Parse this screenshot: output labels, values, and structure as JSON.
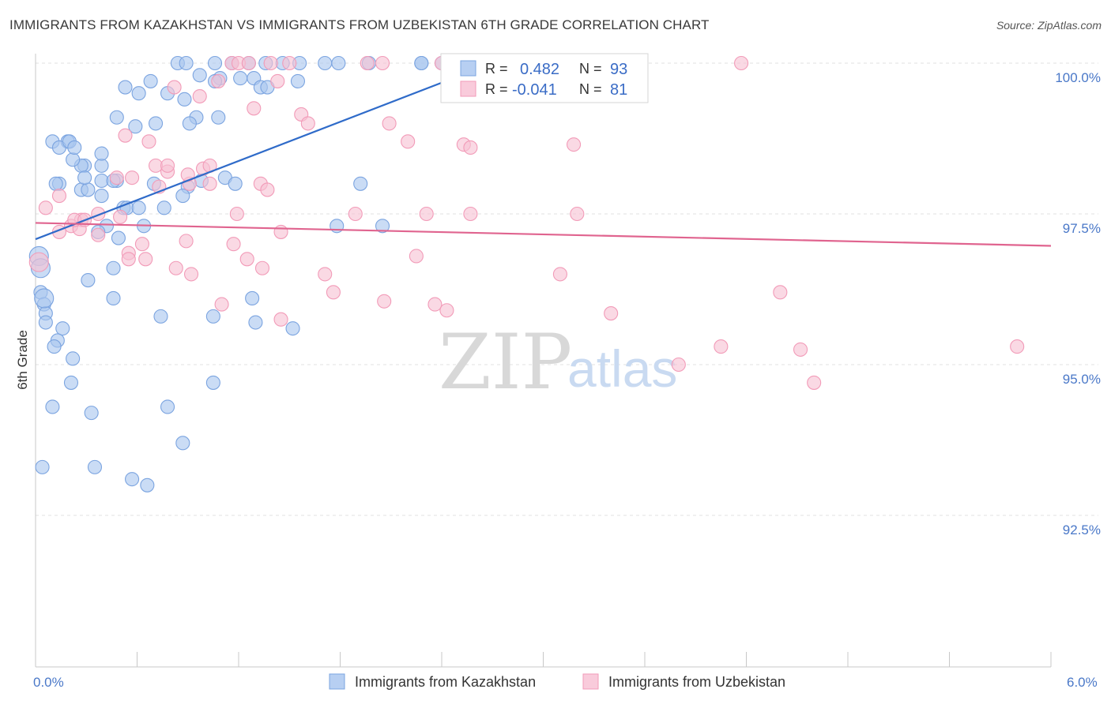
{
  "title": "IMMIGRANTS FROM KAZAKHSTAN VS IMMIGRANTS FROM UZBEKISTAN 6TH GRADE CORRELATION CHART",
  "source": "Source: ZipAtlas.com",
  "watermark": {
    "zip": "ZIP",
    "atlas": "atlas"
  },
  "chart_data": {
    "type": "scatter",
    "title": "IMMIGRANTS FROM KAZAKHSTAN VS IMMIGRANTS FROM UZBEKISTAN 6TH GRADE CORRELATION CHART",
    "xlabel": "",
    "ylabel": "6th Grade",
    "xlim": [
      0.0,
      6.0
    ],
    "ylim": [
      90.0,
      100.2
    ],
    "x_tick_labels": [
      "0.0%",
      "6.0%"
    ],
    "y_ticks": [
      {
        "value": 100.0,
        "label": "100.0%"
      },
      {
        "value": 97.5,
        "label": "97.5%"
      },
      {
        "value": 95.0,
        "label": "95.0%"
      },
      {
        "value": 92.5,
        "label": "92.5%"
      }
    ],
    "grid": "horizontal dashed",
    "legend_position": "top-center",
    "series": [
      {
        "name": "Immigrants from Kazakhstan",
        "color": "#7ba4e0",
        "fill": "#a9c6ef",
        "line_color": "#2f6bc9",
        "R": "0.482",
        "N": "93",
        "trend": {
          "x0": 0.0,
          "y0": 97.08,
          "x1": 2.7,
          "y1": 100.0
        },
        "x": [
          0.84,
          0.89,
          1.06,
          1.16,
          1.26,
          1.36,
          1.46,
          1.56,
          1.71,
          1.79,
          1.97,
          2.28,
          2.4,
          2.28,
          0.97,
          1.09,
          1.21,
          1.29,
          1.06,
          1.33,
          1.55,
          1.37,
          0.53,
          0.61,
          0.68,
          0.78,
          0.88,
          0.95,
          0.91,
          0.71,
          0.59,
          0.48,
          0.1,
          0.19,
          0.14,
          0.29,
          0.27,
          0.14,
          0.12,
          0.27,
          0.31,
          0.39,
          0.48,
          0.22,
          0.39,
          0.29,
          0.2,
          0.23,
          0.39,
          0.39,
          0.46,
          0.52,
          0.7,
          0.76,
          0.9,
          1.12,
          1.18,
          0.98,
          0.87,
          0.54,
          0.42,
          0.37,
          0.49,
          0.61,
          0.64,
          0.46,
          0.31,
          0.46,
          0.03,
          0.05,
          0.06,
          0.06,
          0.16,
          0.13,
          0.11,
          0.22,
          0.21,
          0.1,
          0.04,
          1.05,
          1.3,
          1.52,
          1.28,
          1.78,
          0.78,
          0.57,
          0.66,
          0.35,
          0.33,
          0.74,
          0.87,
          1.05,
          2.05,
          1.92,
          1.08
        ],
        "y": [
          100.0,
          100.0,
          100.0,
          100.0,
          100.0,
          100.0,
          100.0,
          100.0,
          100.0,
          100.0,
          100.0,
          100.0,
          100.0,
          100.0,
          99.8,
          99.75,
          99.75,
          99.75,
          99.7,
          99.6,
          99.7,
          99.6,
          99.6,
          99.5,
          99.7,
          99.5,
          99.4,
          99.1,
          99.0,
          99.0,
          98.95,
          99.1,
          98.7,
          98.7,
          98.6,
          98.3,
          98.3,
          98.0,
          98.0,
          97.9,
          97.9,
          97.8,
          98.05,
          98.4,
          98.3,
          98.1,
          98.7,
          98.6,
          98.5,
          98.05,
          98.05,
          97.6,
          98.0,
          97.6,
          97.95,
          98.1,
          98.0,
          98.05,
          97.8,
          97.6,
          97.3,
          97.2,
          97.1,
          97.6,
          97.3,
          96.6,
          96.4,
          96.1,
          96.2,
          96.0,
          95.85,
          95.7,
          95.6,
          95.4,
          95.3,
          95.1,
          94.7,
          94.3,
          93.3,
          95.8,
          95.7,
          95.6,
          96.1,
          97.3,
          94.3,
          93.1,
          93.0,
          93.3,
          94.2,
          95.8,
          93.7,
          94.7,
          97.3,
          98.0,
          99.1
        ],
        "big_points": [
          {
            "x": 0.02,
            "y": 96.8
          },
          {
            "x": 0.03,
            "y": 96.6
          },
          {
            "x": 0.05,
            "y": 96.1
          }
        ]
      },
      {
        "name": "Immigrants from Uzbekistan",
        "color": "#f29bb8",
        "fill": "#f7c2d4",
        "line_color": "#e0648f",
        "R": "-0.041",
        "N": "81",
        "trend": {
          "x0": 0.0,
          "y0": 97.35,
          "x1": 6.0,
          "y1": 96.97
        },
        "x": [
          1.16,
          1.2,
          1.26,
          1.39,
          1.5,
          1.96,
          2.05,
          2.4,
          2.8,
          3.0,
          4.17,
          1.08,
          0.82,
          0.97,
          1.29,
          1.43,
          1.57,
          1.61,
          2.09,
          2.2,
          2.53,
          2.57,
          3.18,
          0.53,
          0.67,
          0.71,
          0.78,
          0.91,
          0.99,
          1.03,
          0.57,
          1.03,
          0.78,
          0.48,
          0.9,
          1.33,
          0.73,
          1.37,
          1.19,
          1.89,
          2.31,
          2.57,
          3.2,
          1.45,
          0.5,
          0.37,
          0.27,
          0.21,
          0.37,
          0.14,
          0.26,
          0.23,
          0.29,
          0.63,
          0.55,
          0.55,
          0.65,
          0.89,
          1.17,
          1.25,
          1.34,
          0.83,
          0.92,
          1.1,
          1.45,
          1.71,
          1.76,
          2.06,
          2.25,
          2.36,
          2.43,
          3.1,
          3.4,
          3.8,
          4.05,
          4.4,
          4.52,
          4.6,
          5.8,
          0.06,
          0.14
        ],
        "y": [
          100.0,
          100.0,
          100.0,
          100.0,
          100.0,
          100.0,
          100.0,
          100.0,
          100.0,
          100.0,
          100.0,
          99.7,
          99.6,
          99.45,
          99.25,
          99.7,
          99.15,
          99.0,
          99.0,
          98.7,
          98.65,
          98.6,
          98.65,
          98.8,
          98.7,
          98.3,
          98.2,
          98.0,
          98.25,
          98.0,
          98.1,
          98.3,
          98.3,
          98.1,
          98.15,
          98.0,
          97.95,
          97.9,
          97.5,
          97.5,
          97.5,
          97.5,
          97.5,
          97.2,
          97.45,
          97.5,
          97.4,
          97.3,
          97.15,
          97.2,
          97.25,
          97.4,
          97.4,
          97.0,
          96.85,
          96.75,
          96.75,
          97.05,
          97.0,
          96.75,
          96.6,
          96.6,
          96.5,
          96.0,
          95.75,
          96.5,
          96.2,
          96.05,
          96.8,
          96.0,
          95.9,
          96.5,
          95.85,
          95.0,
          95.3,
          96.2,
          95.25,
          94.7,
          95.3,
          97.6,
          97.8
        ],
        "big_points": [
          {
            "x": 0.02,
            "y": 96.7
          }
        ]
      }
    ]
  }
}
